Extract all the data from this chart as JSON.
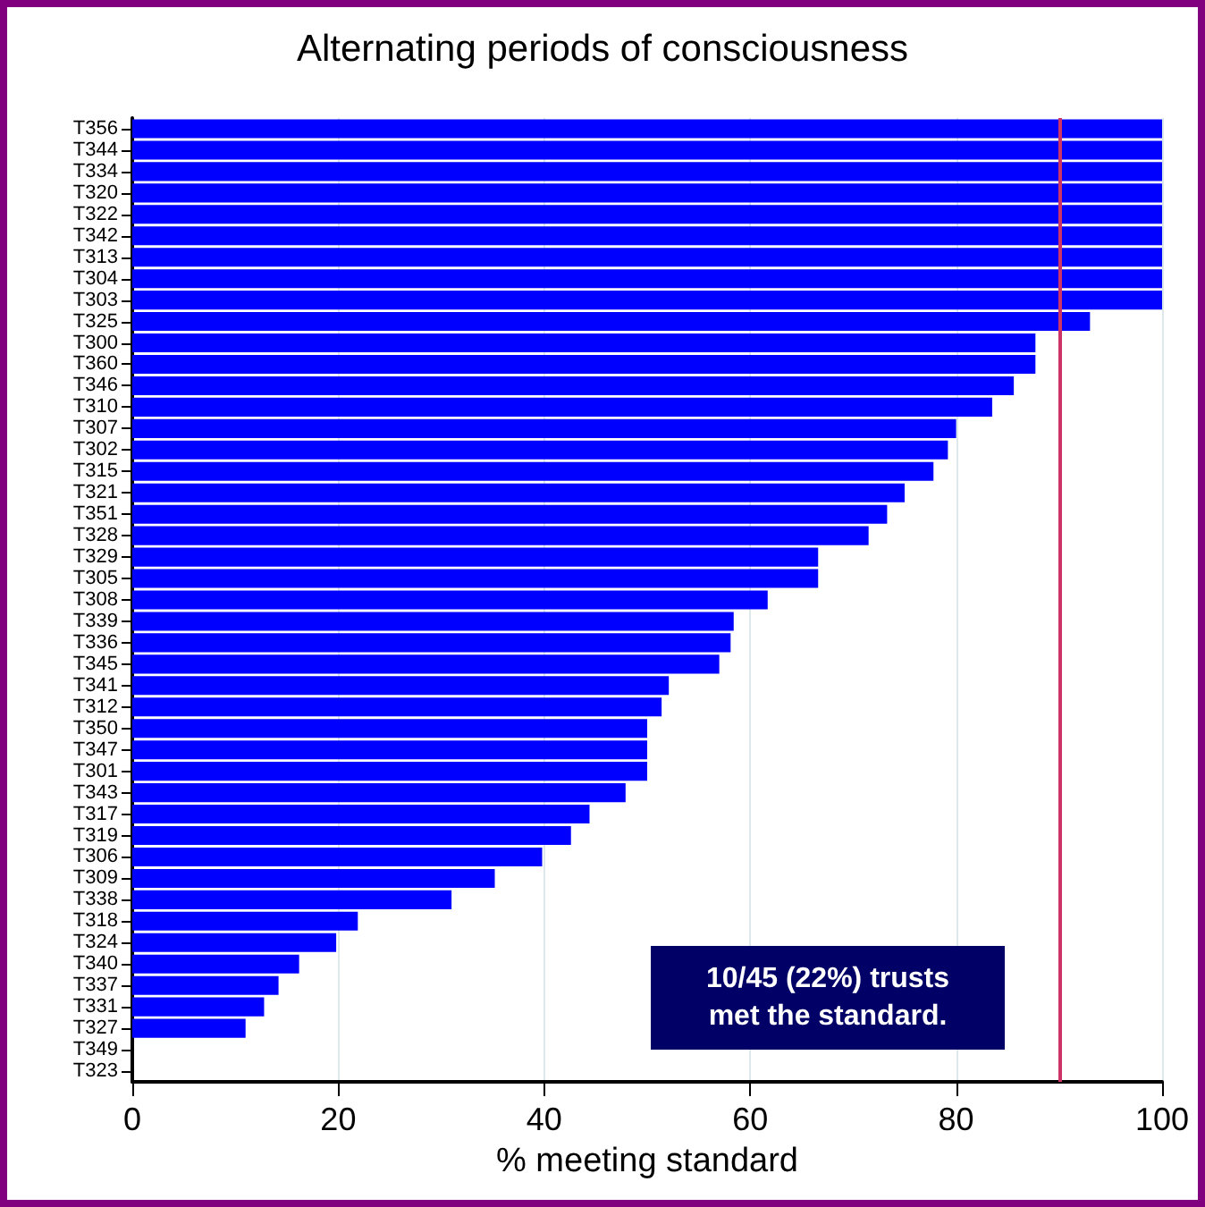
{
  "chart_data": {
    "type": "bar",
    "orientation": "horizontal",
    "title": "Alternating periods of consciousness",
    "xlabel": "% meeting standard",
    "categories": [
      "T356",
      "T344",
      "T334",
      "T320",
      "T322",
      "T342",
      "T313",
      "T304",
      "T303",
      "T325",
      "T300",
      "T360",
      "T346",
      "T310",
      "T307",
      "T302",
      "T315",
      "T321",
      "T351",
      "T328",
      "T329",
      "T305",
      "T308",
      "T339",
      "T336",
      "T345",
      "T341",
      "T312",
      "T350",
      "T347",
      "T301",
      "T343",
      "T317",
      "T319",
      "T306",
      "T309",
      "T338",
      "T318",
      "T324",
      "T340",
      "T337",
      "T331",
      "T327",
      "T349",
      "T323"
    ],
    "values": [
      100,
      100,
      100,
      100,
      100,
      100,
      100,
      100,
      100,
      93,
      87.7,
      87.7,
      85.6,
      83.5,
      80,
      79.2,
      77.8,
      75,
      73.3,
      71.5,
      66.6,
      66.6,
      61.7,
      58.4,
      58.1,
      57,
      52.1,
      51.4,
      50,
      50,
      50,
      47.9,
      44.4,
      42.6,
      39.8,
      35.2,
      31,
      21.9,
      19.8,
      16.2,
      14.2,
      12.8,
      11,
      0,
      0
    ],
    "color": "#0000ff",
    "xlim": [
      0,
      100
    ],
    "xticks": [
      0,
      20,
      40,
      60,
      80,
      100
    ],
    "grid": "x",
    "ref_lines": [
      {
        "axis": "x",
        "value": 90,
        "color": "#cc3366"
      }
    ],
    "annotations": [
      "10/45 (22%) trusts met the standard."
    ]
  }
}
